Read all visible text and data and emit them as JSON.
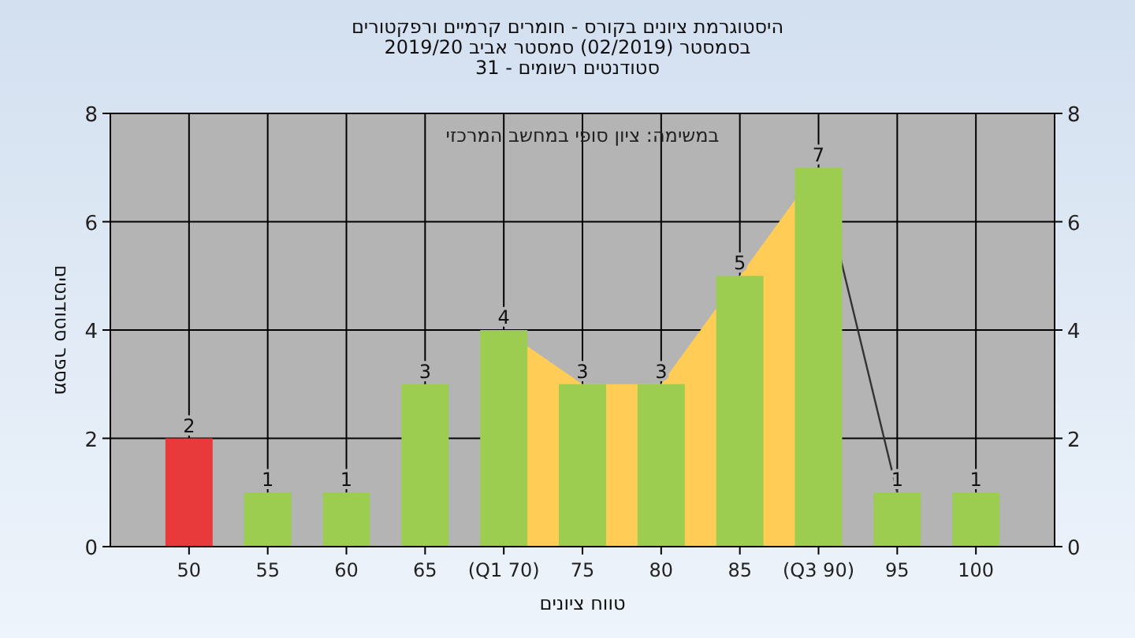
{
  "chart_data": {
    "type": "bar",
    "title": "היסטוגרמת ציונים בקורס - חומרים קרמיים ורפקטורים",
    "subtitle": "בסמסטר  (02/2019)  סמסטר אביב 2019/20\nסטודנטים רשומים - 31",
    "xlabel": "טווח ציונים",
    "ylabel": "מספר סטודנטים",
    "annotations": [
      "במשימה: ציון סופי במחשב המרכזי"
    ],
    "categories": [
      "50",
      "55",
      "60",
      "65",
      "(Q1 70)",
      "75",
      "80",
      "85",
      "(Q3 90)",
      "95",
      "100"
    ],
    "series": [
      {
        "type": "area",
        "color": "#ffcc55",
        "values": [
          null,
          null,
          null,
          null,
          4,
          3,
          3,
          5,
          7,
          null,
          null
        ]
      },
      {
        "type": "line",
        "color": "#333333",
        "values": [
          null,
          null,
          null,
          null,
          null,
          null,
          null,
          null,
          7,
          1,
          null
        ]
      },
      {
        "colors": [
          "#e83a3a",
          "#9ccc50",
          "#9ccc50",
          "#9ccc50",
          "#9ccc50",
          "#9ccc50",
          "#9ccc50",
          "#9ccc50",
          "#9ccc50",
          "#9ccc50",
          "#9ccc50"
        ],
        "values": [
          2,
          1,
          1,
          3,
          4,
          3,
          3,
          5,
          7,
          1,
          1
        ],
        "value_labels": [
          "2",
          "1",
          "1",
          "3",
          "4",
          "3",
          "3",
          "5",
          "7",
          "1",
          "1"
        ]
      }
    ],
    "ylim": [
      0,
      8
    ],
    "yticks": [
      0,
      2,
      4,
      6,
      8
    ],
    "y2lim": [
      0,
      8
    ],
    "y2ticks": [
      0,
      2,
      4,
      6,
      8
    ],
    "grid": true
  }
}
